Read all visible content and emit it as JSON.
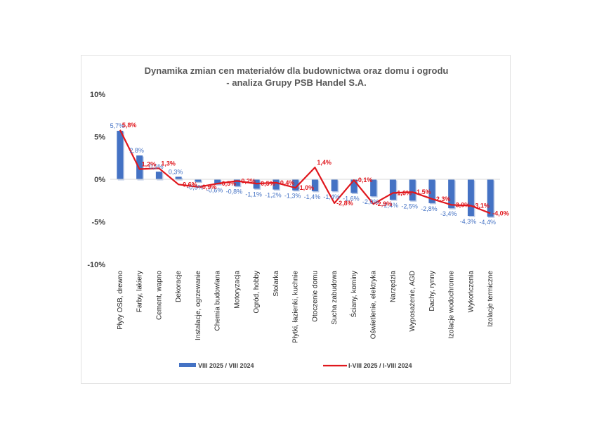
{
  "chart_data": {
    "type": "bar",
    "title": [
      "Dynamika zmian cen materiałów dla budownictwa oraz domu i ogrodu",
      "- analiza Grupy PSB Handel S.A."
    ],
    "categories": [
      "Płyty OSB, drewno",
      "Farby, lakiery",
      "Cement, wapno",
      "Dekoracje",
      "Instalacje, ogrzewanie",
      "Chemia budowlana",
      "Motoryzacja",
      "Ogród, hobby",
      "Stolarka",
      "Płytki, łazienki, kuchnie",
      "Otoczenie domu",
      "Sucha zabudowa",
      "Ściany, kominy",
      "Oświetlenie, elektryka",
      "Narzędzia",
      "Wyposażenie, AGD",
      "Dachy, rynny",
      "Izolacje wodochronne",
      "Wykończenia",
      "Izolacje termiczne"
    ],
    "series": [
      {
        "name": "VIII 2025 / VIII 2024",
        "type": "bar",
        "color": "#4472c4",
        "values": [
          5.7,
          2.8,
          0.9,
          0.3,
          -0.3,
          -0.6,
          -0.8,
          -1.1,
          -1.2,
          -1.3,
          -1.4,
          -1.4,
          -1.6,
          -2.0,
          -2.4,
          -2.5,
          -2.8,
          -3.4,
          -4.3,
          -4.4
        ],
        "labels": [
          "5,7%",
          "2,8%",
          "0,9%",
          "0,3%",
          "-0,3%",
          "-0,6%",
          "-0,8%",
          "-1,1%",
          "-1,2%",
          "-1,3%",
          "-1,4%",
          "-1,4%",
          "-1,6%",
          "-2,0%",
          "-2,4%",
          "-2,5%",
          "-2,8%",
          "-3,4%",
          "-4,3%",
          "-4,4%"
        ]
      },
      {
        "name": "I-VIII 2025 / I-VIII 2024",
        "type": "line",
        "color": "#e0171d",
        "values": [
          5.8,
          1.2,
          1.3,
          -0.6,
          -0.9,
          -0.5,
          -0.2,
          -0.5,
          -0.4,
          -1.0,
          1.4,
          -2.8,
          -0.1,
          -2.9,
          -1.6,
          -1.5,
          -2.3,
          -3.0,
          -3.1,
          -4.0
        ],
        "labels": [
          "5,8%",
          "1,2%",
          "1,3%",
          "-0,6%",
          "-0,9%",
          "-0,5%",
          "-0,2%",
          "-0,5%",
          "-0,4%",
          "-1,0%",
          "1,4%",
          "-2,8%",
          "-0,1%",
          "-2,9%",
          "-1,6%",
          "-1,5%",
          "-2,3%",
          "-3,0%",
          "-3,1%",
          "-4,0%"
        ]
      }
    ],
    "yticks": [
      10,
      5,
      0,
      -5,
      -10
    ],
    "ytick_labels": [
      "10%",
      "5%",
      "0%",
      "-5%",
      "-10%"
    ],
    "ylim": [
      -10,
      10
    ],
    "grid": false,
    "legend": "bottom"
  }
}
